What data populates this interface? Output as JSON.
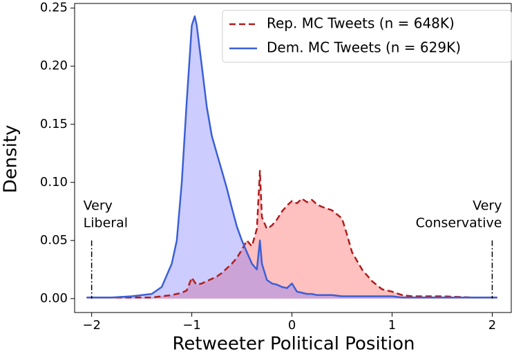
{
  "chart_data": {
    "type": "density",
    "xlabel": "Retweeter Political Position",
    "ylabel": "Density",
    "xlim": [
      -2.17,
      2.19
    ],
    "ylim": [
      -0.012,
      0.254
    ],
    "xticks": [
      {
        "value": -2,
        "label": "−2"
      },
      {
        "value": -1,
        "label": "−1"
      },
      {
        "value": 0,
        "label": "0"
      },
      {
        "value": 1,
        "label": "1"
      },
      {
        "value": 2,
        "label": "2"
      }
    ],
    "yticks": [
      {
        "value": 0,
        "label": "0.00"
      },
      {
        "value": 0.05,
        "label": "0.05"
      },
      {
        "value": 0.1,
        "label": "0.10"
      },
      {
        "value": 0.15,
        "label": "0.15"
      },
      {
        "value": 0.2,
        "label": "0.20"
      },
      {
        "value": 0.25,
        "label": "0.25"
      }
    ],
    "legend": "upper right",
    "x": [
      -2.05,
      -1.8,
      -1.6,
      -1.4,
      -1.3,
      -1.2,
      -1.15,
      -1.1,
      -1.05,
      -1.0,
      -0.97,
      -0.95,
      -0.9,
      -0.85,
      -0.8,
      -0.75,
      -0.7,
      -0.65,
      -0.6,
      -0.55,
      -0.5,
      -0.45,
      -0.4,
      -0.35,
      -0.32,
      -0.3,
      -0.25,
      -0.2,
      -0.15,
      -0.1,
      -0.05,
      0,
      0.05,
      0.1,
      0.15,
      0.2,
      0.25,
      0.3,
      0.4,
      0.5,
      0.55,
      0.6,
      0.7,
      0.8,
      0.9,
      1.0,
      1.1,
      1.2,
      1.5,
      1.8,
      2.05
    ],
    "series": [
      {
        "name": "Rep. MC Tweets (n = 648K)",
        "color": "#b01c1c",
        "fill": "rgba(255,90,90,0.38)",
        "style": "dashed",
        "values": [
          0.001,
          0.001,
          0.001,
          0.001,
          0.002,
          0.003,
          0.004,
          0.005,
          0.007,
          0.018,
          0.014,
          0.012,
          0.013,
          0.015,
          0.017,
          0.019,
          0.022,
          0.026,
          0.03,
          0.035,
          0.042,
          0.05,
          0.045,
          0.06,
          0.11,
          0.07,
          0.06,
          0.063,
          0.068,
          0.075,
          0.08,
          0.084,
          0.082,
          0.086,
          0.083,
          0.085,
          0.081,
          0.079,
          0.076,
          0.069,
          0.055,
          0.04,
          0.025,
          0.015,
          0.008,
          0.006,
          0.003,
          0.002,
          0.002,
          0.001,
          0.001
        ]
      },
      {
        "name": "Dem. MC Tweets (n = 629K)",
        "color": "#3a5fd6",
        "fill": "rgba(110,110,255,0.35)",
        "style": "solid",
        "values": [
          0.001,
          0.001,
          0.002,
          0.004,
          0.01,
          0.03,
          0.05,
          0.1,
          0.17,
          0.235,
          0.243,
          0.235,
          0.2,
          0.165,
          0.14,
          0.125,
          0.11,
          0.095,
          0.078,
          0.062,
          0.05,
          0.04,
          0.03,
          0.025,
          0.05,
          0.03,
          0.016,
          0.013,
          0.012,
          0.01,
          0.009,
          0.013,
          0.006,
          0.005,
          0.004,
          0.004,
          0.003,
          0.003,
          0.003,
          0.002,
          0.002,
          0.002,
          0.002,
          0.002,
          0.002,
          0.002,
          0.001,
          0.001,
          0.001,
          0.001,
          0.001
        ]
      }
    ],
    "markers": [
      {
        "x": -2,
        "top": 0.05,
        "label": [
          "Very",
          "Liberal"
        ]
      },
      {
        "x": 2,
        "top": 0.05,
        "label": [
          "Very",
          "Conservative"
        ]
      }
    ]
  }
}
